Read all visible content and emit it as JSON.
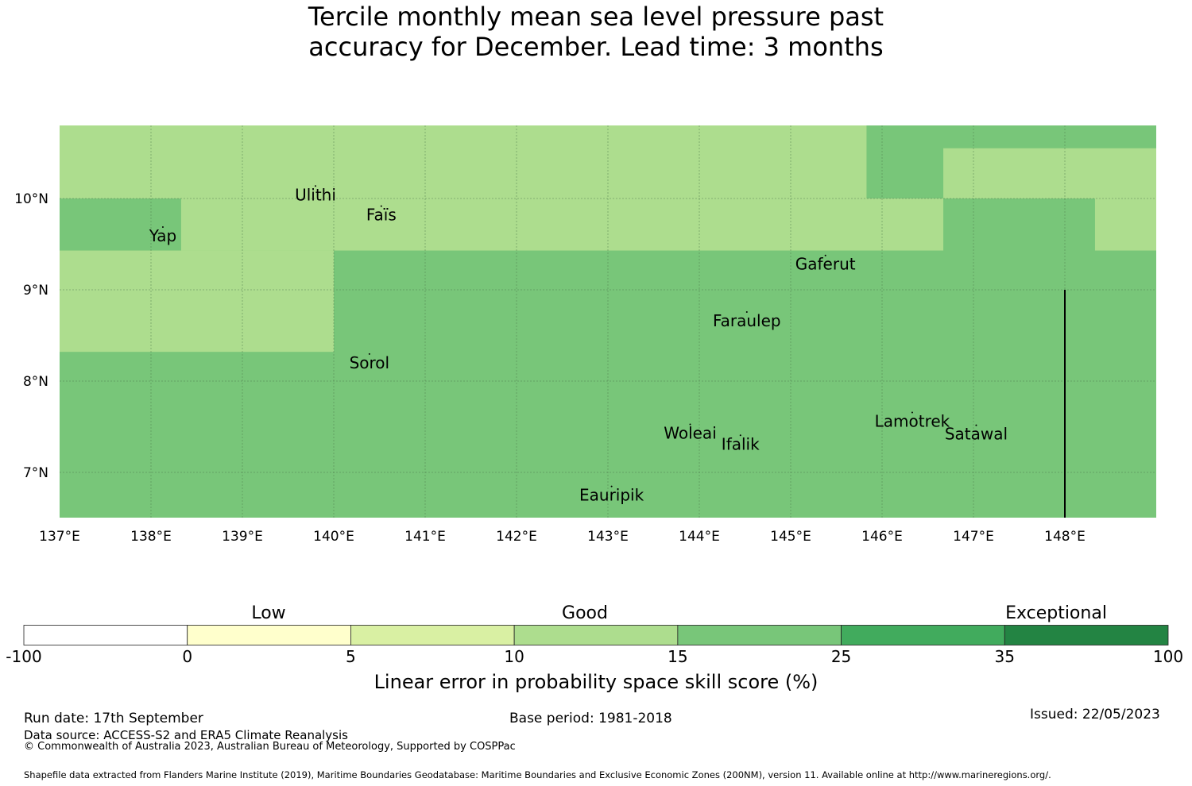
{
  "title": {
    "line1": "Tercile monthly mean sea level pressure past",
    "line2": "accuracy for December. Lead time: 3 months"
  },
  "map": {
    "lat_ticks": [
      "10°N",
      "9°N",
      "8°N",
      "7°N"
    ],
    "lon_ticks": [
      "137°E",
      "138°E",
      "139°E",
      "140°E",
      "141°E",
      "142°E",
      "143°E",
      "144°E",
      "145°E",
      "146°E",
      "147°E",
      "148°E"
    ],
    "extent": {
      "lon_min": 137,
      "lon_max": 149,
      "lat_min": 6.5,
      "lat_max": 10.8
    },
    "cells": [
      {
        "lon0": 137,
        "lon1": 149,
        "lat0": 6.5,
        "lat1": 10.8,
        "category": "15-25"
      },
      {
        "lon0": 137,
        "lon1": 145.83,
        "lat0": 10.0,
        "lat1": 10.8,
        "category": "10-15"
      },
      {
        "lon0": 146.67,
        "lon1": 149,
        "lat0": 10.0,
        "lat1": 10.55,
        "category": "10-15"
      },
      {
        "lon0": 138.33,
        "lon1": 146.67,
        "lat0": 9.43,
        "lat1": 10.0,
        "category": "10-15"
      },
      {
        "lon0": 148.33,
        "lon1": 149,
        "lat0": 9.43,
        "lat1": 10.0,
        "category": "10-15"
      },
      {
        "lon0": 137,
        "lon1": 140,
        "lat0": 8.32,
        "lat1": 9.43,
        "category": "10-15"
      },
      {
        "lon0": 138.33,
        "lon1": 140,
        "lat0": 9.43,
        "lat1": 10.0,
        "category": "10-15"
      }
    ],
    "places": [
      {
        "name": "Ulithi",
        "lon": 139.8,
        "lat": 9.98
      },
      {
        "name": "Faïs",
        "lon": 140.52,
        "lat": 9.76
      },
      {
        "name": "Yap",
        "lon": 138.13,
        "lat": 9.53
      },
      {
        "name": "Gaferut",
        "lon": 145.38,
        "lat": 9.22
      },
      {
        "name": "Faraulep",
        "lon": 144.52,
        "lat": 8.6
      },
      {
        "name": "Sorol",
        "lon": 140.39,
        "lat": 8.14
      },
      {
        "name": "Woleai",
        "lon": 143.9,
        "lat": 7.37
      },
      {
        "name": "Ifalik",
        "lon": 144.45,
        "lat": 7.25
      },
      {
        "name": "Lamotrek",
        "lon": 146.33,
        "lat": 7.5
      },
      {
        "name": "Satawal",
        "lon": 147.03,
        "lat": 7.36
      },
      {
        "name": "Eauripik",
        "lon": 143.04,
        "lat": 6.69
      }
    ],
    "boundary_line": {
      "lon": 148.0,
      "lat0": 6.5,
      "lat1": 9.0
    }
  },
  "colorbar": {
    "category_labels": [
      "Low",
      "Good",
      "Exceptional"
    ],
    "bins": [
      {
        "from": "-100",
        "to": "0",
        "color": "#ffffff"
      },
      {
        "from": "0",
        "to": "5",
        "color": "#ffffcc"
      },
      {
        "from": "5",
        "to": "10",
        "color": "#d9f0a3"
      },
      {
        "from": "10",
        "to": "15",
        "color": "#addd8e"
      },
      {
        "from": "15",
        "to": "25",
        "color": "#78c679"
      },
      {
        "from": "25",
        "to": "35",
        "color": "#41ab5d"
      },
      {
        "from": "35",
        "to": "100",
        "color": "#238443"
      }
    ],
    "tick_labels": [
      "-100",
      "0",
      "5",
      "10",
      "15",
      "25",
      "35",
      "100"
    ],
    "title": "Linear error in probability space skill score (%)"
  },
  "footer": {
    "run_date": "Run date: 17th September",
    "base_period": "Base period: 1981-2018",
    "issued": "Issued: 22/05/2023",
    "data_source": "Data source: ACCESS-S2 and ERA5 Climate Reanalysis",
    "copyright": "© Commonwealth of Australia 2023, Australian Bureau of Meteorology, Supported by COSPPac",
    "shapefile": "Shapefile data extracted from Flanders Marine Institute (2019), Maritime Boundaries Geodatabase: Maritime Boundaries and Exclusive Economic Zones (200NM), version 11. Available online at http://www.marineregions.org/."
  },
  "colors": {
    "c10_15": "#addd8e",
    "c15_25": "#78c679",
    "grid": "#4d7a4d"
  }
}
